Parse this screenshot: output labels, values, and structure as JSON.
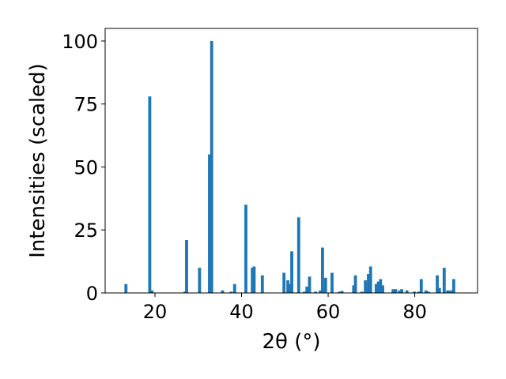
{
  "chart_data": {
    "type": "bar",
    "xlabel": "2θ (°)",
    "ylabel": "Intensities (scaled)",
    "xlim": [
      8.5,
      94.5
    ],
    "ylim": [
      0,
      105
    ],
    "xticks": [
      20,
      40,
      60,
      80
    ],
    "yticks": [
      0,
      25,
      50,
      75,
      100
    ],
    "bar_color": "#1f77b4",
    "bar_width": 0.7,
    "grid": false,
    "x": [
      13.3,
      18.8,
      19.3,
      26.9,
      27.3,
      30.3,
      32.6,
      33.1,
      35.6,
      37.6,
      38.4,
      41.0,
      42.5,
      42.9,
      44.8,
      49.8,
      50.7,
      51.1,
      51.6,
      53.2,
      54.5,
      55.1,
      55.7,
      57.1,
      58.2,
      58.7,
      59.4,
      60.9,
      62.6,
      63.2,
      65.9,
      66.3,
      67.8,
      68.6,
      69.3,
      69.8,
      71.1,
      71.6,
      72.1,
      72.6,
      75.0,
      75.6,
      76.5,
      77.0,
      78.2,
      79.9,
      80.9,
      81.5,
      82.6,
      83.2,
      85.2,
      85.7,
      86.8,
      87.6,
      88.3,
      89.0
    ],
    "values": [
      3.5,
      78.0,
      1.0,
      0.5,
      21.0,
      10.0,
      55.0,
      100.0,
      1.0,
      0.5,
      3.5,
      35.0,
      10.0,
      10.5,
      7.0,
      8.0,
      5.0,
      3.5,
      16.5,
      30.0,
      0.5,
      2.5,
      6.5,
      0.5,
      1.0,
      18.0,
      6.0,
      8.0,
      0.5,
      0.8,
      3.0,
      7.0,
      0.5,
      5.0,
      7.5,
      10.5,
      3.5,
      4.5,
      5.5,
      3.0,
      1.5,
      1.5,
      1.0,
      1.5,
      1.0,
      0.5,
      0.5,
      5.5,
      1.0,
      0.5,
      7.0,
      2.0,
      10.0,
      1.0,
      1.0,
      5.5
    ]
  }
}
